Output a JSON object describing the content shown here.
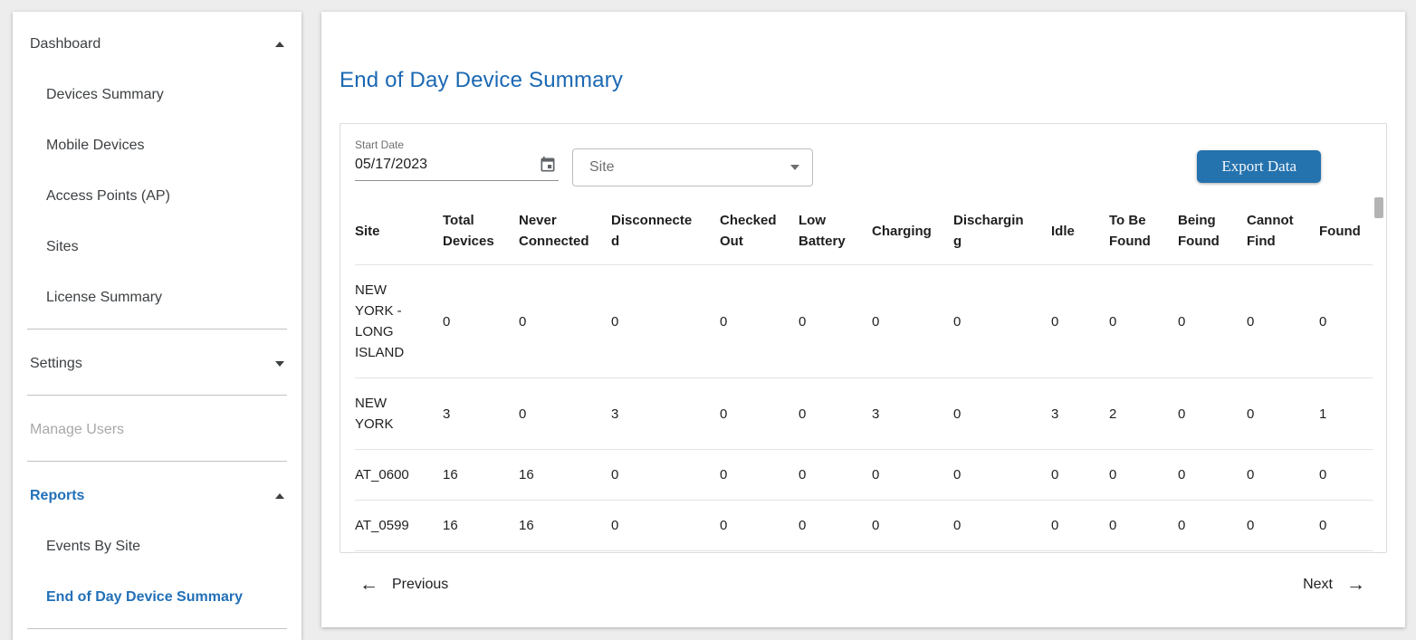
{
  "sidebar": {
    "dashboard": {
      "label": "Dashboard",
      "caret_icon": "caret-up-icon",
      "items": [
        "Devices Summary",
        "Mobile Devices",
        "Access Points (AP)",
        "Sites",
        "License Summary"
      ]
    },
    "settings": {
      "label": "Settings",
      "caret_icon": "caret-down-icon"
    },
    "manage_users": {
      "label": "Manage Users"
    },
    "reports": {
      "label": "Reports",
      "caret_icon": "caret-up-icon",
      "items": [
        "Events By Site",
        "End of Day Device Summary"
      ],
      "active_item": "End of Day Device Summary"
    }
  },
  "main": {
    "title": "End of Day Device Summary"
  },
  "filters": {
    "start_date": {
      "label": "Start Date",
      "value": "05/17/2023",
      "icon": "calendar-icon"
    },
    "site": {
      "label": "Site",
      "icon": "chevron-down-icon"
    }
  },
  "actions": {
    "export_label": "Export Data"
  },
  "table": {
    "columns": [
      "Site",
      "Total Devices",
      "Never Connected",
      "Disconnected",
      "Checked Out",
      "Low Battery",
      "Charging",
      "Discharging",
      "Idle",
      "To Be Found",
      "Being Found",
      "Cannot Find",
      "Found"
    ],
    "rows": [
      {
        "site": "NEW YORK - LONG ISLAND",
        "values": [
          0,
          0,
          0,
          0,
          0,
          0,
          0,
          0,
          0,
          0,
          0,
          0
        ]
      },
      {
        "site": "NEW YORK",
        "values": [
          3,
          0,
          3,
          0,
          0,
          3,
          0,
          3,
          2,
          0,
          0,
          1
        ]
      },
      {
        "site": "AT_0600",
        "values": [
          16,
          16,
          0,
          0,
          0,
          0,
          0,
          0,
          0,
          0,
          0,
          0
        ]
      },
      {
        "site": "AT_0599",
        "values": [
          16,
          16,
          0,
          0,
          0,
          0,
          0,
          0,
          0,
          0,
          0,
          0
        ]
      }
    ]
  },
  "pagination": {
    "previous_label": "Previous",
    "previous_icon": "arrow-left-icon",
    "next_label": "Next",
    "next_icon": "arrow-right-icon"
  },
  "colors": {
    "title_blue": "#1b68b2",
    "sidebar_active_blue": "#2270b8",
    "export_button_blue": "#2472ae"
  }
}
